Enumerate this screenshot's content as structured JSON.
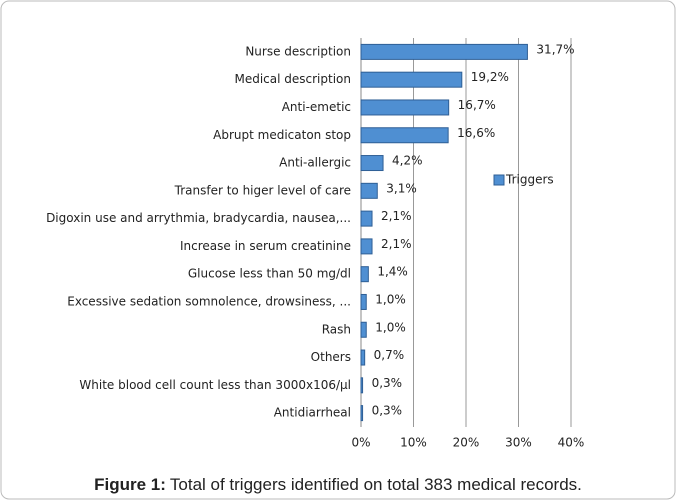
{
  "chart_data": {
    "type": "hbar",
    "categories": [
      "Nurse description",
      "Medical description",
      "Anti-emetic",
      "Abrupt medicaton stop",
      "Anti-allergic",
      "Transfer to higer level of care",
      "Digoxin use and arrythmia, bradycardia, nausea,...",
      "Increase in serum creatinine",
      "Glucose less than 50 mg/dl",
      "Excessive sedation somnolence, drowsiness, ...",
      "Rash",
      "Others",
      "White blood cell count less than 3000x106/µl",
      "Antidiarrheal"
    ],
    "series": [
      {
        "name": "Triggers",
        "color": "#4f8fd2",
        "values": [
          31.7,
          19.2,
          16.7,
          16.6,
          4.2,
          3.1,
          2.1,
          2.1,
          1.4,
          1.0,
          1.0,
          0.7,
          0.3,
          0.3
        ],
        "value_labels": [
          "31,7%",
          "19,2%",
          "16,7%",
          "16,6%",
          "4,2%",
          "3,1%",
          "2,1%",
          "2,1%",
          "1,4%",
          "1,0%",
          "1,0%",
          "0,7%",
          "0,3%",
          "0,3%"
        ]
      }
    ],
    "xlim": [
      0,
      40
    ],
    "xticks": [
      {
        "value": 0,
        "label": "0%"
      },
      {
        "value": 10,
        "label": "10%"
      },
      {
        "value": 20,
        "label": "20%"
      },
      {
        "value": 30,
        "label": "30%"
      },
      {
        "value": 40,
        "label": "40%"
      }
    ],
    "grid": true,
    "legend": "right",
    "caption_label": "Figure 1:",
    "caption": "Total of triggers identified on total 383 medical records."
  }
}
